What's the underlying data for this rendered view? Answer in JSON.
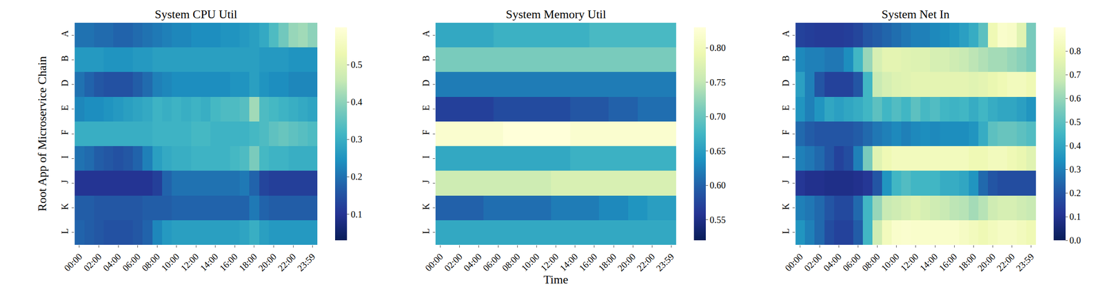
{
  "chart_data": [
    {
      "type": "heatmap",
      "title": "System CPU Util",
      "y_label": "Root App of Microservice Chain",
      "categories": [
        "00:00",
        null,
        "02:00",
        null,
        "04:00",
        null,
        "06:00",
        null,
        "08:00",
        null,
        "10:00",
        null,
        "12:00",
        null,
        "14:00",
        null,
        "16:00",
        null,
        "18:00",
        null,
        "20:00",
        null,
        "22:00",
        null,
        "23:59"
      ],
      "y": [
        "A",
        "B",
        "D",
        "E",
        "F",
        "I",
        "J",
        "K",
        "L"
      ],
      "values": [
        [
          0.2,
          0.2,
          0.19,
          0.19,
          0.18,
          0.18,
          0.19,
          0.2,
          0.21,
          0.22,
          0.23,
          0.23,
          0.24,
          0.24,
          0.24,
          0.25,
          0.25,
          0.26,
          0.27,
          0.29,
          0.33,
          0.37,
          0.41,
          0.42,
          0.4
        ],
        [
          0.26,
          0.26,
          0.26,
          0.25,
          0.25,
          0.25,
          0.26,
          0.26,
          0.27,
          0.27,
          0.27,
          0.27,
          0.27,
          0.27,
          0.27,
          0.27,
          0.27,
          0.27,
          0.27,
          0.26,
          0.26,
          0.26,
          0.25,
          0.25,
          0.25
        ],
        [
          0.2,
          0.18,
          0.16,
          0.15,
          0.15,
          0.15,
          0.17,
          0.19,
          0.22,
          0.23,
          0.24,
          0.24,
          0.24,
          0.24,
          0.24,
          0.24,
          0.25,
          0.25,
          0.27,
          0.25,
          0.24,
          0.24,
          0.23,
          0.23,
          0.23
        ],
        [
          0.23,
          0.24,
          0.24,
          0.25,
          0.26,
          0.27,
          0.28,
          0.29,
          0.31,
          0.3,
          0.31,
          0.3,
          0.31,
          0.3,
          0.32,
          0.33,
          0.33,
          0.34,
          0.42,
          0.33,
          0.32,
          0.31,
          0.3,
          0.29,
          0.28
        ],
        [
          0.3,
          0.3,
          0.3,
          0.3,
          0.3,
          0.3,
          0.3,
          0.3,
          0.31,
          0.31,
          0.31,
          0.31,
          0.32,
          0.32,
          0.31,
          0.31,
          0.31,
          0.31,
          0.32,
          0.33,
          0.35,
          0.36,
          0.35,
          0.34,
          0.33
        ],
        [
          0.2,
          0.19,
          0.17,
          0.16,
          0.15,
          0.16,
          0.18,
          0.22,
          0.27,
          0.29,
          0.3,
          0.3,
          0.31,
          0.31,
          0.31,
          0.31,
          0.32,
          0.33,
          0.38,
          0.32,
          0.31,
          0.31,
          0.3,
          0.3,
          0.3
        ],
        [
          0.1,
          0.1,
          0.1,
          0.1,
          0.1,
          0.1,
          0.1,
          0.1,
          0.12,
          0.18,
          0.2,
          0.2,
          0.2,
          0.2,
          0.2,
          0.2,
          0.2,
          0.21,
          0.18,
          0.13,
          0.12,
          0.12,
          0.12,
          0.12,
          0.12
        ],
        [
          0.17,
          0.17,
          0.16,
          0.16,
          0.16,
          0.16,
          0.16,
          0.17,
          0.17,
          0.17,
          0.18,
          0.18,
          0.18,
          0.18,
          0.18,
          0.18,
          0.18,
          0.18,
          0.21,
          0.18,
          0.17,
          0.17,
          0.17,
          0.17,
          0.17
        ],
        [
          0.18,
          0.17,
          0.16,
          0.15,
          0.15,
          0.15,
          0.16,
          0.18,
          0.23,
          0.26,
          0.27,
          0.27,
          0.27,
          0.27,
          0.27,
          0.27,
          0.27,
          0.28,
          0.3,
          0.27,
          0.26,
          0.26,
          0.26,
          0.26,
          0.26
        ]
      ],
      "zlim": [
        0.03,
        0.6
      ],
      "zticks": [
        0.1,
        0.2,
        0.3,
        0.4,
        0.5
      ]
    },
    {
      "type": "heatmap",
      "title": "System Memory Util",
      "x_label": "Time",
      "categories": [
        "00:00",
        null,
        "02:00",
        null,
        "04:00",
        null,
        "06:00",
        null,
        "08:00",
        null,
        "10:00",
        null,
        "12:00",
        null,
        "14:00",
        null,
        "16:00",
        null,
        "18:00",
        null,
        "20:00",
        null,
        "22:00",
        null,
        "23:59"
      ],
      "y": [
        "A",
        "B",
        "D",
        "E",
        "F",
        "I",
        "J",
        "K",
        "L"
      ],
      "values": [
        [
          0.66,
          0.66,
          0.66,
          0.66,
          0.66,
          0.66,
          0.67,
          0.67,
          0.67,
          0.67,
          0.67,
          0.67,
          0.67,
          0.67,
          0.67,
          0.67,
          0.68,
          0.68,
          0.68,
          0.68,
          0.68,
          0.68,
          0.68,
          0.68,
          0.68
        ],
        [
          0.71,
          0.71,
          0.71,
          0.71,
          0.71,
          0.71,
          0.71,
          0.71,
          0.71,
          0.71,
          0.71,
          0.71,
          0.71,
          0.71,
          0.71,
          0.71,
          0.71,
          0.71,
          0.71,
          0.71,
          0.71,
          0.71,
          0.71,
          0.71,
          0.71
        ],
        [
          0.62,
          0.62,
          0.62,
          0.62,
          0.62,
          0.62,
          0.62,
          0.62,
          0.62,
          0.62,
          0.62,
          0.62,
          0.62,
          0.62,
          0.62,
          0.62,
          0.62,
          0.62,
          0.62,
          0.62,
          0.62,
          0.62,
          0.62,
          0.62,
          0.62
        ],
        [
          0.57,
          0.57,
          0.57,
          0.57,
          0.57,
          0.57,
          0.58,
          0.58,
          0.58,
          0.58,
          0.58,
          0.58,
          0.58,
          0.58,
          0.59,
          0.59,
          0.59,
          0.59,
          0.6,
          0.6,
          0.6,
          0.61,
          0.61,
          0.61,
          0.61
        ],
        [
          0.82,
          0.82,
          0.82,
          0.82,
          0.82,
          0.82,
          0.82,
          0.83,
          0.83,
          0.83,
          0.83,
          0.83,
          0.83,
          0.83,
          0.82,
          0.82,
          0.82,
          0.82,
          0.82,
          0.82,
          0.82,
          0.82,
          0.82,
          0.82,
          0.82
        ],
        [
          0.66,
          0.66,
          0.66,
          0.66,
          0.66,
          0.66,
          0.66,
          0.66,
          0.66,
          0.66,
          0.66,
          0.66,
          0.66,
          0.66,
          0.67,
          0.67,
          0.67,
          0.67,
          0.67,
          0.67,
          0.67,
          0.67,
          0.67,
          0.67,
          0.67
        ],
        [
          0.76,
          0.76,
          0.76,
          0.76,
          0.76,
          0.76,
          0.76,
          0.76,
          0.76,
          0.76,
          0.76,
          0.76,
          0.77,
          0.77,
          0.77,
          0.77,
          0.77,
          0.77,
          0.77,
          0.77,
          0.77,
          0.77,
          0.77,
          0.77,
          0.77
        ],
        [
          0.6,
          0.6,
          0.6,
          0.6,
          0.6,
          0.61,
          0.61,
          0.61,
          0.61,
          0.61,
          0.61,
          0.61,
          0.62,
          0.62,
          0.62,
          0.62,
          0.62,
          0.63,
          0.63,
          0.63,
          0.64,
          0.64,
          0.65,
          0.65,
          0.65
        ],
        [
          0.66,
          0.66,
          0.66,
          0.66,
          0.66,
          0.66,
          0.66,
          0.66,
          0.66,
          0.66,
          0.66,
          0.66,
          0.66,
          0.66,
          0.66,
          0.66,
          0.66,
          0.66,
          0.66,
          0.66,
          0.66,
          0.66,
          0.66,
          0.66,
          0.66
        ]
      ],
      "zlim": [
        0.52,
        0.83
      ],
      "zticks": [
        0.55,
        {
          "value": 0.6,
          "label": "0.60"
        },
        0.65,
        {
          "value": 0.7,
          "label": "0.70"
        },
        0.75,
        {
          "value": 0.8,
          "label": "0.80"
        }
      ]
    },
    {
      "type": "heatmap",
      "title": "System Net In",
      "categories": [
        "00:00",
        null,
        "02:00",
        null,
        "04:00",
        null,
        "06:00",
        null,
        "08:00",
        null,
        "10:00",
        null,
        "12:00",
        null,
        "14:00",
        null,
        "16:00",
        null,
        "18:00",
        null,
        "20:00",
        null,
        "22:00",
        null,
        "23:59"
      ],
      "y": [
        "A",
        "B",
        "D",
        "E",
        "F",
        "I",
        "J",
        "K",
        "L"
      ],
      "values": [
        [
          0.15,
          0.14,
          0.13,
          0.13,
          0.13,
          0.14,
          0.16,
          0.2,
          0.22,
          0.24,
          0.26,
          0.28,
          0.3,
          0.3,
          0.32,
          0.33,
          0.35,
          0.38,
          0.42,
          0.5,
          0.8,
          0.86,
          0.85,
          0.75,
          0.55
        ],
        [
          0.32,
          0.3,
          0.3,
          0.28,
          0.28,
          0.33,
          0.45,
          0.6,
          0.72,
          0.76,
          0.76,
          0.75,
          0.74,
          0.74,
          0.72,
          0.72,
          0.7,
          0.68,
          0.66,
          0.64,
          0.62,
          0.62,
          0.6,
          0.58,
          0.55
        ],
        [
          0.38,
          0.3,
          0.2,
          0.15,
          0.15,
          0.15,
          0.2,
          0.45,
          0.68,
          0.72,
          0.74,
          0.75,
          0.76,
          0.76,
          0.76,
          0.76,
          0.76,
          0.76,
          0.75,
          0.76,
          0.78,
          0.8,
          0.82,
          0.82,
          0.8
        ],
        [
          0.35,
          0.3,
          0.35,
          0.4,
          0.38,
          0.4,
          0.42,
          0.45,
          0.5,
          0.45,
          0.48,
          0.45,
          0.5,
          0.46,
          0.48,
          0.45,
          0.44,
          0.45,
          0.42,
          0.45,
          0.42,
          0.4,
          0.4,
          0.38,
          0.35
        ],
        [
          0.25,
          0.22,
          0.2,
          0.2,
          0.2,
          0.2,
          0.22,
          0.25,
          0.28,
          0.3,
          0.32,
          0.3,
          0.32,
          0.33,
          0.32,
          0.33,
          0.33,
          0.33,
          0.35,
          0.42,
          0.5,
          0.52,
          0.52,
          0.5,
          0.48
        ],
        [
          0.3,
          0.28,
          0.25,
          0.2,
          0.15,
          0.18,
          0.3,
          0.55,
          0.75,
          0.8,
          0.82,
          0.82,
          0.82,
          0.82,
          0.82,
          0.82,
          0.82,
          0.82,
          0.8,
          0.8,
          0.82,
          0.82,
          0.8,
          0.78,
          0.75
        ],
        [
          0.12,
          0.1,
          0.1,
          0.09,
          0.09,
          0.09,
          0.1,
          0.12,
          0.2,
          0.35,
          0.45,
          0.48,
          0.45,
          0.45,
          0.45,
          0.42,
          0.42,
          0.4,
          0.35,
          0.25,
          0.2,
          0.18,
          0.18,
          0.18,
          0.18
        ],
        [
          0.3,
          0.28,
          0.25,
          0.2,
          0.17,
          0.17,
          0.25,
          0.45,
          0.6,
          0.68,
          0.7,
          0.72,
          0.74,
          0.72,
          0.7,
          0.68,
          0.66,
          0.65,
          0.62,
          0.65,
          0.7,
          0.72,
          0.72,
          0.7,
          0.68
        ],
        [
          0.35,
          0.3,
          0.25,
          0.18,
          0.15,
          0.15,
          0.22,
          0.45,
          0.7,
          0.82,
          0.86,
          0.87,
          0.86,
          0.86,
          0.86,
          0.86,
          0.86,
          0.84,
          0.82,
          0.8,
          0.82,
          0.84,
          0.84,
          0.82,
          0.8
        ]
      ],
      "zlim": [
        0,
        0.9
      ],
      "zticks": [
        {
          "value": 0,
          "label": "0.0"
        },
        0.1,
        0.2,
        0.3,
        0.4,
        0.5,
        0.6,
        0.7,
        0.8
      ]
    }
  ]
}
